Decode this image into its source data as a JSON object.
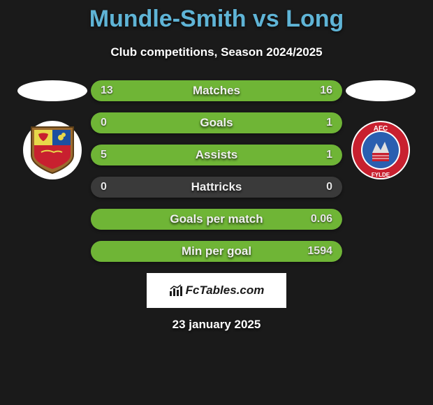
{
  "title": "Mundle-Smith vs Long",
  "subtitle": "Club competitions, Season 2024/2025",
  "date": "23 january 2025",
  "branding_text": "FcTables.com",
  "colors": {
    "title": "#5fb4d6",
    "bar_fill": "#6fb536",
    "bar_bg": "#3a3a3a",
    "page_bg": "#1a1a1a",
    "text": "#ffffff"
  },
  "crest_left": {
    "bg": "#ffffff",
    "shield_colors": [
      "#e8d84a",
      "#1c4fa0",
      "#c8202f",
      "#9c6b2e"
    ]
  },
  "crest_right": {
    "bg": "#ffffff",
    "ring_color": "#c8202f",
    "inner_color": "#2a5fb0",
    "text_top": "AFC",
    "text_bottom": "FYLDE"
  },
  "bars": [
    {
      "label": "Matches",
      "left": "13",
      "right": "16",
      "left_pct": 45,
      "right_pct": 55
    },
    {
      "label": "Goals",
      "left": "0",
      "right": "1",
      "left_pct": 0,
      "right_pct": 100
    },
    {
      "label": "Assists",
      "left": "5",
      "right": "1",
      "left_pct": 83,
      "right_pct": 17
    },
    {
      "label": "Hattricks",
      "left": "0",
      "right": "0",
      "left_pct": 0,
      "right_pct": 0
    },
    {
      "label": "Goals per match",
      "left": "",
      "right": "0.06",
      "left_pct": 0,
      "right_pct": 100
    },
    {
      "label": "Min per goal",
      "left": "",
      "right": "1594",
      "left_pct": 0,
      "right_pct": 100
    }
  ]
}
